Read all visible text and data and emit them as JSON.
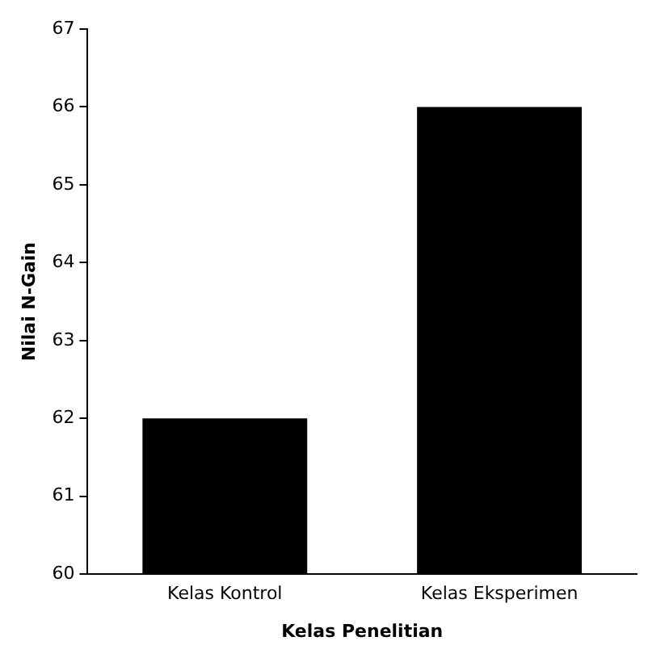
{
  "chart_data": {
    "type": "bar",
    "xlabel": "Kelas Penelitian",
    "ylabel": "Nilai N-Gain",
    "categories": [
      "Kelas Kontrol",
      "Kelas Eksperimen"
    ],
    "values": [
      62,
      66
    ],
    "color": "#000000",
    "ylim": [
      60,
      67
    ],
    "yticks": [
      60,
      61,
      62,
      63,
      64,
      65,
      66,
      67
    ],
    "grid": false,
    "legend": false
  }
}
